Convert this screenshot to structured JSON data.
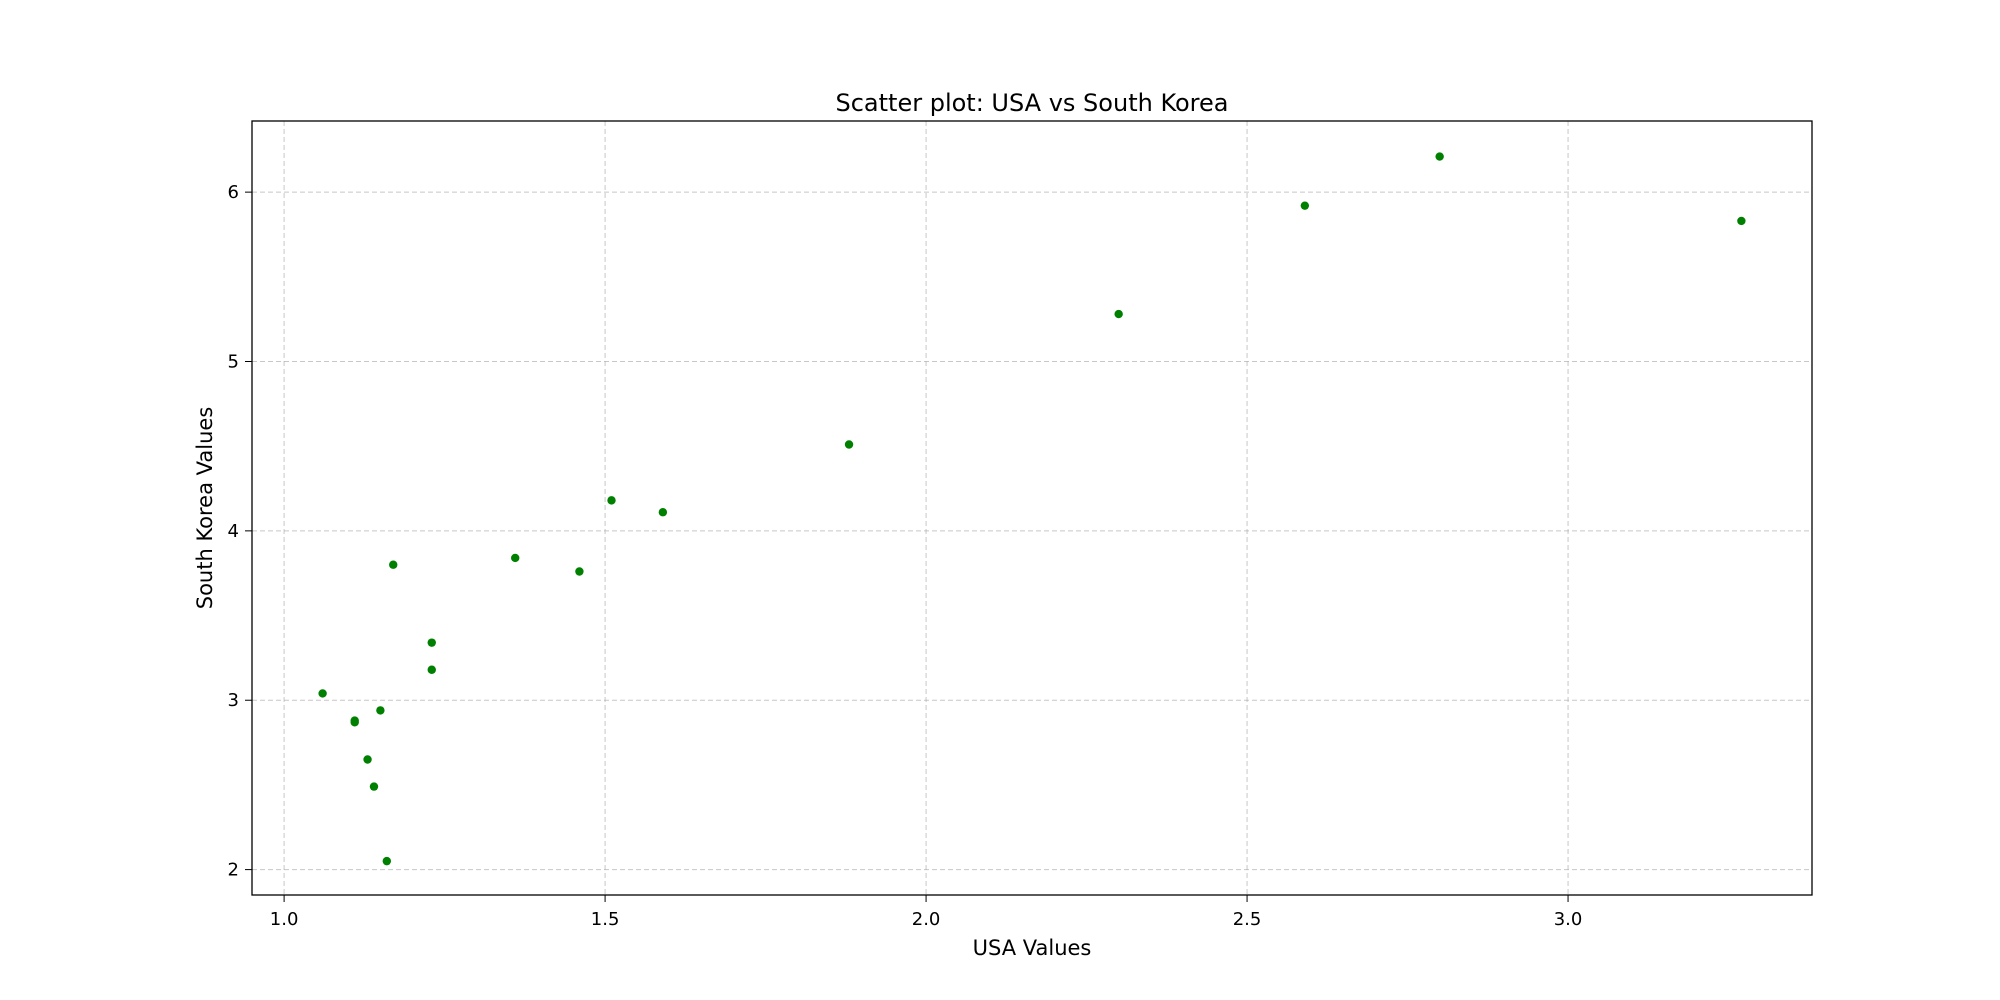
{
  "chart_data": {
    "type": "scatter",
    "title": "Scatter plot: USA vs South Korea",
    "xlabel": "USA Values",
    "ylabel": "South Korea Values",
    "xlim": [
      0.95,
      3.38
    ],
    "ylim": [
      1.85,
      6.42
    ],
    "x_ticks": [
      1.0,
      1.5,
      2.0,
      2.5,
      3.0
    ],
    "x_tick_labels": [
      "1.0",
      "1.5",
      "2.0",
      "2.5",
      "3.0"
    ],
    "y_ticks": [
      2,
      3,
      4,
      5,
      6
    ],
    "y_tick_labels": [
      "2",
      "3",
      "4",
      "5",
      "6"
    ],
    "grid": true,
    "point_color": "#008000",
    "series": [
      {
        "points": [
          {
            "x": 1.06,
            "y": 3.04
          },
          {
            "x": 1.11,
            "y": 2.88
          },
          {
            "x": 1.11,
            "y": 2.87
          },
          {
            "x": 1.13,
            "y": 2.65
          },
          {
            "x": 1.14,
            "y": 2.49
          },
          {
            "x": 1.15,
            "y": 2.94
          },
          {
            "x": 1.16,
            "y": 2.05
          },
          {
            "x": 1.17,
            "y": 3.8
          },
          {
            "x": 1.23,
            "y": 3.34
          },
          {
            "x": 1.23,
            "y": 3.18
          },
          {
            "x": 1.36,
            "y": 3.84
          },
          {
            "x": 1.46,
            "y": 3.76
          },
          {
            "x": 1.51,
            "y": 4.18
          },
          {
            "x": 1.59,
            "y": 4.11
          },
          {
            "x": 1.88,
            "y": 4.51
          },
          {
            "x": 2.3,
            "y": 5.28
          },
          {
            "x": 2.59,
            "y": 5.92
          },
          {
            "x": 2.8,
            "y": 6.21
          },
          {
            "x": 3.27,
            "y": 5.83
          }
        ]
      }
    ]
  }
}
